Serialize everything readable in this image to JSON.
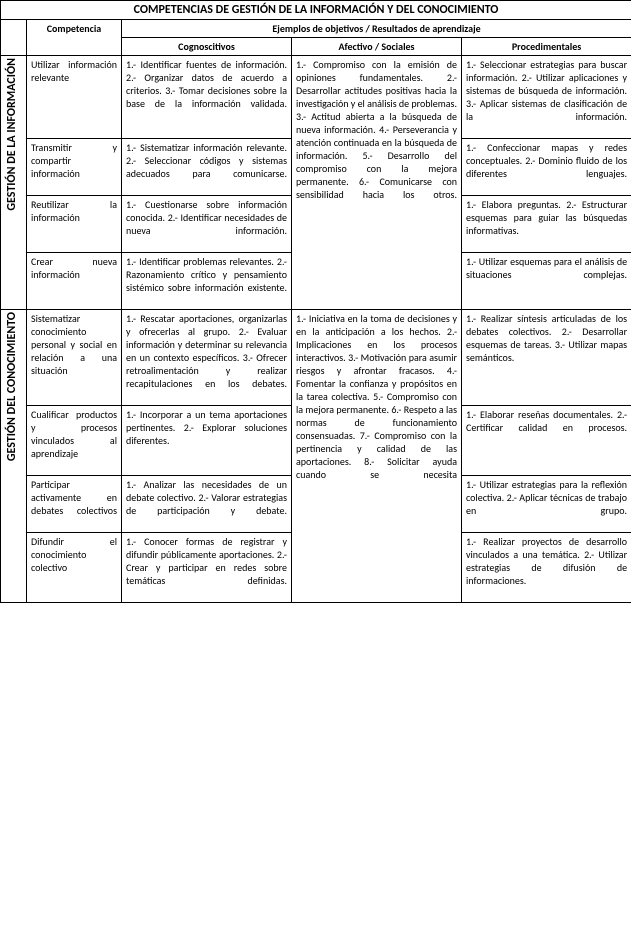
{
  "title": "COMPETENCIAS DE GESTIÓN DE LA INFORMACIÓN Y DEL CONOCIMIENTO",
  "headers": {
    "competencia": "Competencia",
    "ejemplos": "Ejemplos de objetivos / Resultados de aprendizaje",
    "cog": "Cognoscitivos",
    "af": "Afectivo / Sociales",
    "pro": "Procedimentales"
  },
  "sections": [
    {
      "label": "GESTIÓN DE LA INFORMACIÓN",
      "afectivo": "1.- Compromiso con la emisión de opiniones fundamentales.\n2.- Desarrollar actitudes positivas hacia la investigación y el análisis de problemas.\n3.- Actitud abierta a la búsqueda de nueva información.\n4.- Perseverancia y atención continuada en la búsqueda de información.\n5.- Desarrollo del compromiso con la mejora permanente.\n6.- Comunicarse con sensibilidad hacia los otros.",
      "rows": [
        {
          "comp": "Utilizar información relevante",
          "cog": "1.- Identificar fuentes de información.\n2.- Organizar datos de acuerdo a criterios.\n3.- Tomar decisiones sobre la base de la información validada.",
          "pro": "1.- Seleccionar estrategias para buscar información.\n2.- Utilizar aplicaciones y sistemas de búsqueda de información.\n3.- Aplicar sistemas de clasificación de la información."
        },
        {
          "comp": "Transmitir y compartir información",
          "cog": "1.- Sistematizar información relevante.\n2.- Seleccionar códigos y sistemas adecuados para comunicarse.",
          "pro": "1.- Confeccionar mapas y redes conceptuales.\n2.- Dominio fluido de los diferentes lenguajes."
        },
        {
          "comp": "Reutilizar la información",
          "cog": "1.- Cuestionarse sobre información conocida.\n2.- Identificar necesidades de nueva información.",
          "pro": "1.- Elabora preguntas.\n2.- Estructurar esquemas para guiar las búsquedas informativas."
        },
        {
          "comp": "Crear nueva información",
          "cog": "1.- Identificar problemas relevantes.\n2.- Razonamiento crítico y pensamiento sistémico sobre información existente.",
          "pro": "1.- Utilizar esquemas para el análisis de situaciones complejas."
        }
      ]
    },
    {
      "label": "GESTIÓN DEL CONOCIMIENTO",
      "afectivo": "1.- Iniciativa en la toma de decisiones y en la anticipación a los hechos.\n2.- Implicaciones en los procesos interactivos.\n3.- Motivación para asumir riesgos y afrontar fracasos.\n4.- Fomentar la confianza y propósitos en la tarea colectiva.\n5.- Compromiso con la mejora permanente.\n6.- Respeto a las normas de funcionamiento consensuadas.\n7.- Compromiso con la pertinencia y calidad de las aportaciones.\n8.- Solicitar ayuda cuando se necesita",
      "rows": [
        {
          "comp": "Sistematizar conocimiento personal y social en relación a una situación",
          "cog": "1.- Rescatar aportaciones, organizarlas y ofrecerlas al grupo.\n2.- Evaluar información y determinar su relevancia en un contexto específicos.\n3.- Ofrecer retroalimentación y realizar recapitulaciones en los debates.",
          "pro": "1.- Realizar síntesis articuladas de los debates colectivos.\n2.- Desarrollar esquemas de tareas.\n3.- Utilizar mapas semánticos."
        },
        {
          "comp": "Cualificar productos y procesos vinculados al aprendizaje",
          "cog": "1.- Incorporar a un tema aportaciones pertinentes.\n2.- Explorar soluciones diferentes.",
          "pro": "1.- Elaborar reseñas documentales.\n2.- Certificar calidad en procesos."
        },
        {
          "comp": "Participar activamente en debates colectivos",
          "cog": "1.- Analizar las necesidades de un debate colectivo.\n2.- Valorar estrategias de participación y debate.",
          "pro": "1.- Utilizar estrategias para la reflexión colectiva.\n2.- Aplicar técnicas de trabajo en grupo."
        },
        {
          "comp": "Difundir el conocimiento colectivo",
          "cog": "1.- Conocer formas de registrar y difundir públicamente aportaciones.\n2.- Crear y participar en redes sobre temáticas definidas.",
          "pro": "1.- Realizar proyectos de desarrollo vinculados a una temática.\n2.- Utilizar estrategias de difusión de informaciones."
        }
      ]
    }
  ]
}
